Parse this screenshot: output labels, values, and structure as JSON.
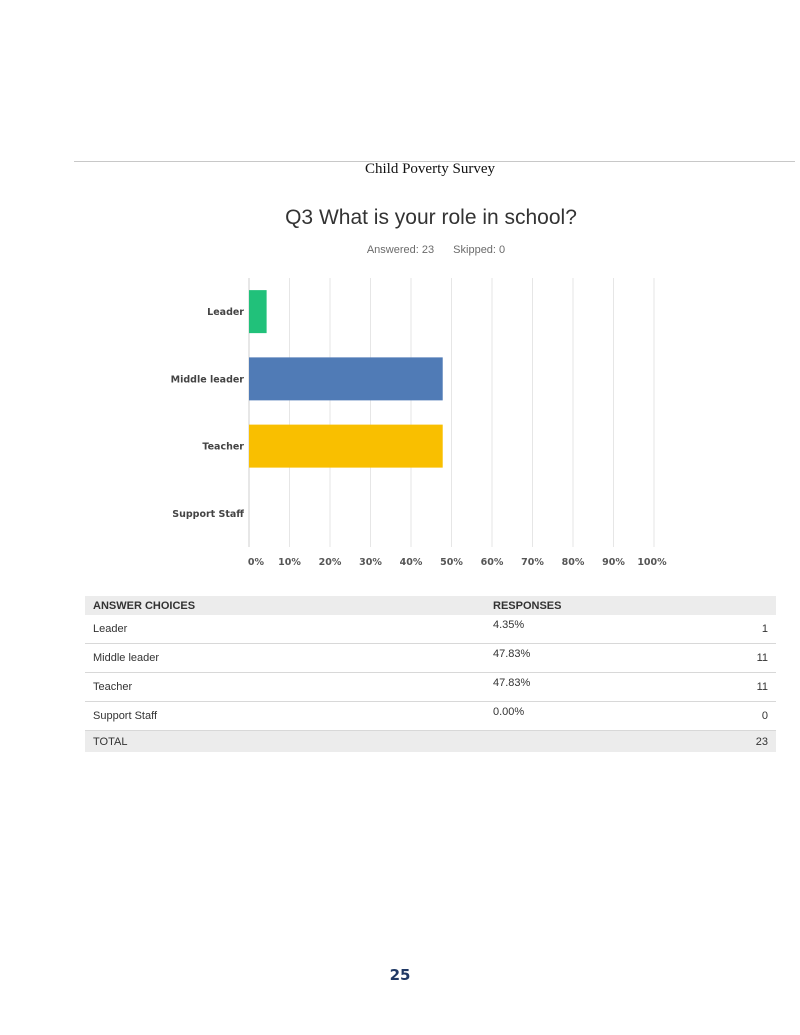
{
  "document": {
    "running_title": "Child Poverty Survey",
    "page_number": "25"
  },
  "question": {
    "title": "Q3 What is your role in school?",
    "answered": "Answered: 23",
    "skipped": "Skipped: 0"
  },
  "chart_data": {
    "type": "bar",
    "orientation": "horizontal",
    "categories": [
      "Leader",
      "Middle leader",
      "Teacher",
      "Support Staff"
    ],
    "values": [
      4.35,
      47.83,
      47.83,
      0
    ],
    "colors": [
      "#21c17a",
      "#507bb6",
      "#f9bf00",
      "#9b9b9b"
    ],
    "xlim": [
      0,
      100
    ],
    "ticks": [
      "0%",
      "10%",
      "20%",
      "30%",
      "40%",
      "50%",
      "60%",
      "70%",
      "80%",
      "90%",
      "100%"
    ],
    "grid": true
  },
  "table": {
    "headers": [
      "ANSWER CHOICES",
      "RESPONSES"
    ],
    "rows": [
      {
        "choice": "Leader",
        "percent": "4.35%",
        "count": "1"
      },
      {
        "choice": "Middle leader",
        "percent": "47.83%",
        "count": "11"
      },
      {
        "choice": "Teacher",
        "percent": "47.83%",
        "count": "11"
      },
      {
        "choice": "Support Staff",
        "percent": "0.00%",
        "count": "0"
      }
    ],
    "total_label": "TOTAL",
    "total_count": "23"
  }
}
